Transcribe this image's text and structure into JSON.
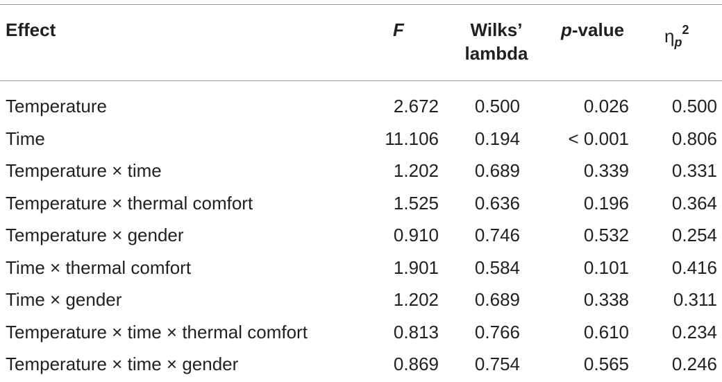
{
  "headers": {
    "effect": "Effect",
    "f": "F",
    "wilks_line1": "Wilks’",
    "wilks_line2": "lambda",
    "p_italic": "p",
    "p_rest": "-value",
    "eta_symbol": "η",
    "eta_sub": "p",
    "eta_sup": "2"
  },
  "rows": [
    {
      "effect": "Temperature",
      "f": "2.672",
      "wilks": "0.500",
      "p": "0.026",
      "eta": "0.500"
    },
    {
      "effect": "Time",
      "f": "11.106",
      "wilks": "0.194",
      "p": "< 0.001",
      "eta": "0.806"
    },
    {
      "effect": "Temperature × time",
      "f": "1.202",
      "wilks": "0.689",
      "p": "0.339",
      "eta": "0.331"
    },
    {
      "effect": "Temperature × thermal comfort",
      "f": "1.525",
      "wilks": "0.636",
      "p": "0.196",
      "eta": "0.364"
    },
    {
      "effect": "Temperature × gender",
      "f": "0.910",
      "wilks": "0.746",
      "p": "0.532",
      "eta": "0.254"
    },
    {
      "effect": "Time × thermal comfort",
      "f": "1.901",
      "wilks": "0.584",
      "p": "0.101",
      "eta": "0.416"
    },
    {
      "effect": "Time × gender",
      "f": "1.202",
      "wilks": "0.689",
      "p": "0.338",
      "eta": "0.311"
    },
    {
      "effect": "Temperature × time × thermal comfort",
      "f": "0.813",
      "wilks": "0.766",
      "p": "0.610",
      "eta": "0.234"
    },
    {
      "effect": "Temperature × time × gender",
      "f": "0.869",
      "wilks": "0.754",
      "p": "0.565",
      "eta": "0.246"
    }
  ]
}
